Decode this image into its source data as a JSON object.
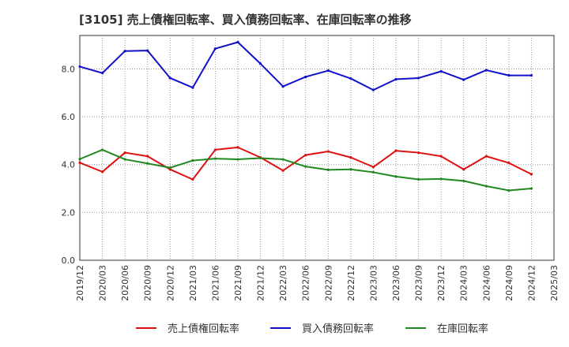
{
  "chart_data": {
    "type": "line",
    "title": "[3105]  売上債権回転率、買入債務回転率、在庫回転率の推移",
    "xlabel": "",
    "ylabel": "",
    "ylim": [
      0,
      9.4
    ],
    "yticks": [
      "0.0",
      "2.0",
      "4.0",
      "6.0",
      "8.0"
    ],
    "ytick_values": [
      0,
      2,
      4,
      6,
      8
    ],
    "grid": true,
    "legend_position": "bottom",
    "categories": [
      "2019/12",
      "2020/03",
      "2020/06",
      "2020/09",
      "2020/12",
      "2021/03",
      "2021/06",
      "2021/09",
      "2021/12",
      "2022/03",
      "2022/06",
      "2022/09",
      "2022/12",
      "2023/03",
      "2023/06",
      "2023/09",
      "2023/12",
      "2024/03",
      "2024/06",
      "2024/09",
      "2024/12",
      "2025/03"
    ],
    "series": [
      {
        "name": "売上債権回転率",
        "color": "#dd1111",
        "values": [
          4.08,
          3.7,
          4.5,
          4.35,
          3.8,
          3.38,
          4.62,
          4.72,
          4.3,
          3.75,
          4.4,
          4.55,
          4.3,
          3.9,
          4.58,
          4.5,
          4.35,
          3.8,
          4.35,
          4.07,
          3.6,
          null
        ]
      },
      {
        "name": "買入債務回転率",
        "color": "#1111cc",
        "values": [
          8.1,
          7.83,
          8.75,
          8.77,
          7.62,
          7.22,
          8.85,
          9.12,
          8.22,
          7.27,
          7.67,
          7.93,
          7.6,
          7.12,
          7.57,
          7.62,
          7.9,
          7.55,
          7.95,
          7.73,
          7.73,
          null
        ]
      },
      {
        "name": "在庫回転率",
        "color": "#228822",
        "values": [
          4.23,
          4.62,
          4.22,
          4.05,
          3.87,
          4.17,
          4.25,
          4.22,
          4.27,
          4.22,
          3.92,
          3.78,
          3.8,
          3.68,
          3.5,
          3.38,
          3.4,
          3.32,
          3.1,
          2.92,
          3.0,
          null
        ]
      }
    ]
  }
}
